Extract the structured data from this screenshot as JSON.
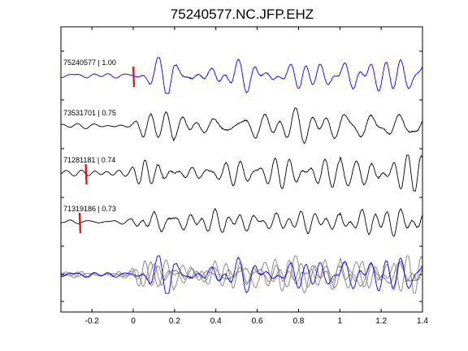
{
  "chart_data": {
    "type": "line",
    "title": "75240577.NC.JFP.EHZ",
    "xlabel": "",
    "ylabel": "",
    "xlim": [
      -0.35,
      1.4
    ],
    "x_ticks": [
      -0.2,
      0,
      0.2,
      0.4,
      0.6,
      0.8,
      1,
      1.2,
      1.4
    ],
    "x_tick_labels": [
      "-0.2",
      "0",
      "0.2",
      "0.4",
      "0.6",
      "0.8",
      "1",
      "1.2",
      "1.4"
    ],
    "grid": false,
    "legend": "none",
    "traces": [
      {
        "label": "75240577 | 1.00",
        "event_id": "75240577",
        "correlation": 1.0,
        "color": "#0000ff",
        "pick_time": 0.0,
        "pick_color": "#ff0000"
      },
      {
        "label": "73531701 | 0.75",
        "event_id": "73531701",
        "correlation": 0.75,
        "color": "#000000",
        "pick_time": null,
        "pick_color": "#ff0000"
      },
      {
        "label": "71281181 | 0.74",
        "event_id": "71281181",
        "correlation": 0.74,
        "color": "#000000",
        "pick_time": -0.23,
        "pick_color": "#ff0000"
      },
      {
        "label": "71319186 | 0.73",
        "event_id": "71319186",
        "correlation": 0.73,
        "color": "#000000",
        "pick_time": -0.26,
        "pick_color": "#ff0000"
      }
    ],
    "stack": {
      "reference_color": "#0000ff",
      "other_color": "#808080"
    }
  }
}
